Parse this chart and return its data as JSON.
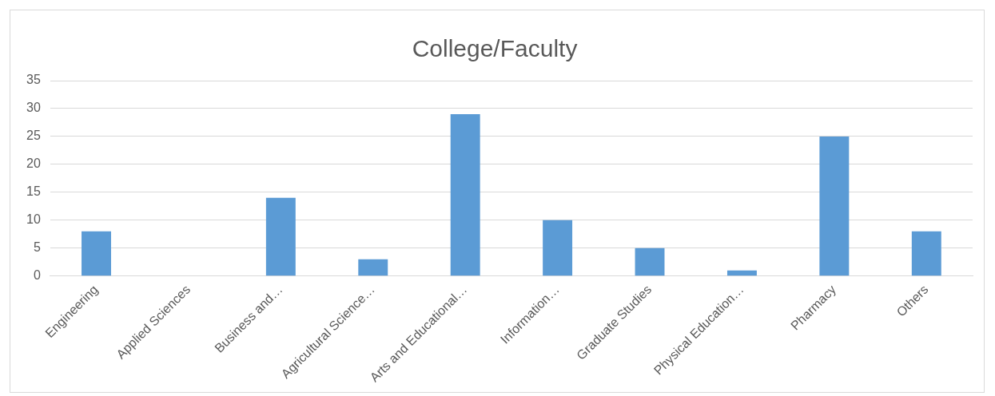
{
  "chart_data": {
    "type": "bar",
    "title": "College/Faculty",
    "categories": [
      "Engineering",
      "Applied Sciences",
      "Business and…",
      "Agricultural Science…",
      "Arts and Educational…",
      "Information…",
      "Graduate Studies",
      "Physical Education…",
      "Pharmacy",
      "Others"
    ],
    "values": [
      8,
      0,
      14,
      3,
      29,
      10,
      5,
      1,
      25,
      8
    ],
    "color": "#5b9bd5",
    "ylim": [
      0,
      35
    ],
    "yticks": [
      0,
      5,
      10,
      15,
      20,
      25,
      30,
      35
    ],
    "grid": "y",
    "legend": false
  }
}
